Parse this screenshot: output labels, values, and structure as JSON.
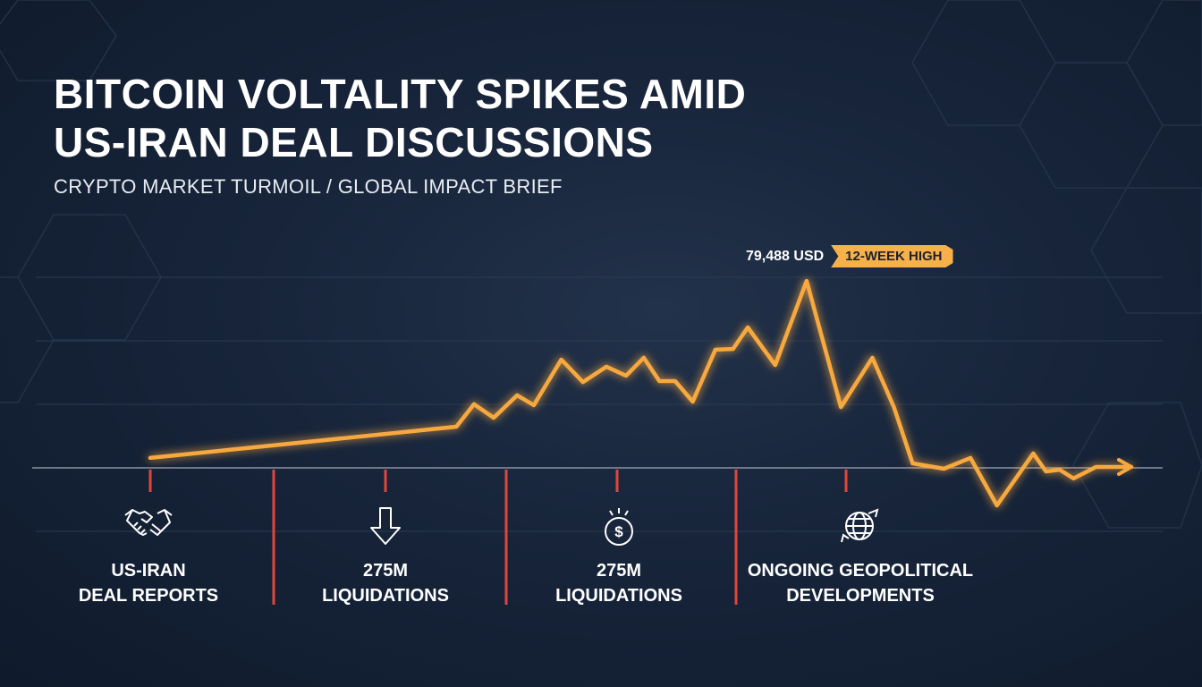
{
  "header": {
    "title_line1": "BITCOIN VOLTALITY SPIKES AMID",
    "title_line2": "US-IRAN DEAL DISCUSSIONS",
    "subtitle": "CRYPTO MARKET TURMOIL / GLOBAL IMPACT BRIEF"
  },
  "annotation": {
    "peak_value": "79,488 USD",
    "badge": "12-WEEK HIGH"
  },
  "colors": {
    "line": "#f7a940",
    "marker": "#e0463a",
    "badge": "#f7b04a",
    "background": "#17243a"
  },
  "events": [
    {
      "icon": "handshake-icon",
      "line1": "US-IRAN",
      "line2": "DEAL REPORTS"
    },
    {
      "icon": "arrow-down-icon",
      "line1": "275M",
      "line2": "LIQUIDATIONS"
    },
    {
      "icon": "dollar-coin-icon",
      "line1": "275M",
      "line2": "LIQUIDATIONS"
    },
    {
      "icon": "globe-icon",
      "line1": "ONGOING GEOPOLITICAL",
      "line2": "DEVELOPMENTS"
    }
  ],
  "chart_data": {
    "type": "line",
    "title": "",
    "xlabel": "",
    "ylabel": "",
    "note": "relative price level, peak = 100; no axis ticks printed",
    "grid": true,
    "end_arrow": true,
    "x": [
      0,
      31.2,
      33,
      35,
      37.4,
      39.1,
      41.9,
      44.1,
      46.5,
      48.5,
      50.3,
      51.9,
      53.5,
      55.3,
      57.6,
      59.4,
      60.9,
      63.7,
      66.9,
      70.4,
      73.6,
      75.8,
      77.7,
      80.9,
      83.6,
      86.3,
      90,
      91.3,
      92.7,
      94.1,
      96.4,
      100
    ],
    "values": [
      5.3,
      22,
      34,
      26.8,
      38.8,
      33.5,
      57.9,
      45.9,
      54.1,
      49.3,
      58.9,
      46.4,
      46.4,
      35.4,
      63.2,
      63.6,
      75.1,
      55,
      100,
      32.5,
      58.9,
      32.5,
      2.4,
      -0.5,
      5.3,
      -20.1,
      7.7,
      -1.9,
      -1,
      -5.7,
      0.5,
      0.5
    ],
    "peak_index": 18
  }
}
